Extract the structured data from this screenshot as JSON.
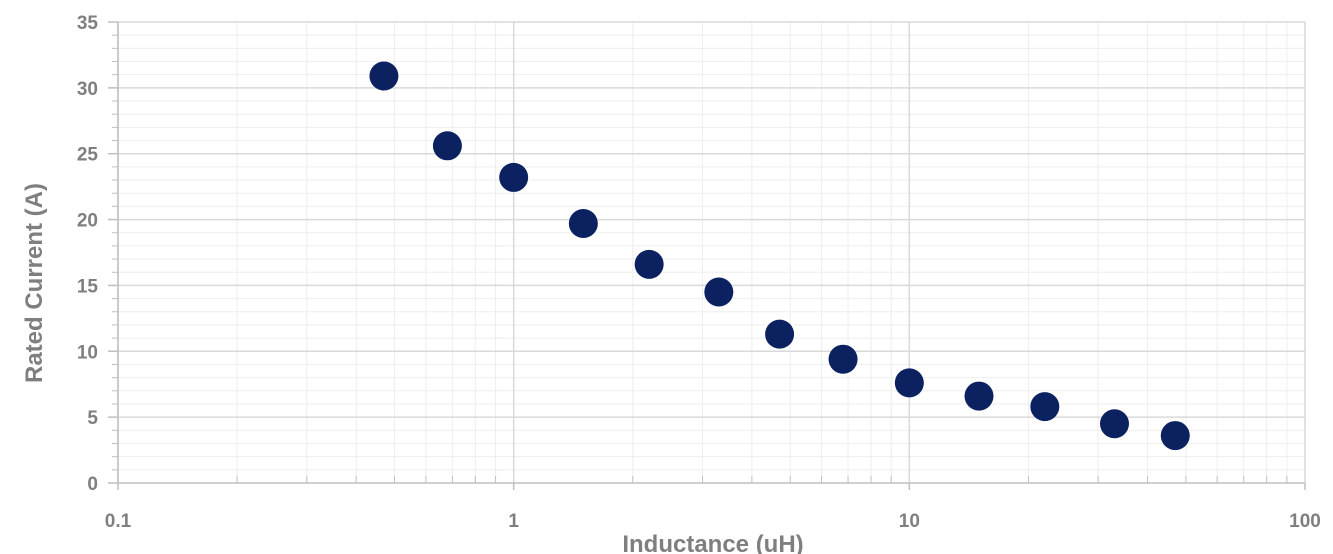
{
  "chart_data": {
    "type": "scatter",
    "title": "",
    "xlabel": "Inductance (uH)",
    "ylabel": "Rated Current (A)",
    "x_scale": "log",
    "xlim": [
      0.1,
      100
    ],
    "ylim": [
      0,
      35
    ],
    "x_ticks": [
      "0.1",
      "1",
      "10",
      "100"
    ],
    "y_ticks": [
      "0",
      "5",
      "10",
      "15",
      "20",
      "25",
      "30",
      "35"
    ],
    "grid": true,
    "legend": "none",
    "marker_color": "#0b2160",
    "series": [
      {
        "x": [
          0.47,
          0.68,
          1.0,
          1.5,
          2.2,
          3.3,
          4.7,
          6.8,
          10,
          15,
          22,
          33,
          47
        ],
        "y": [
          30.9,
          25.6,
          23.2,
          19.7,
          16.6,
          14.5,
          11.3,
          9.4,
          7.6,
          6.6,
          5.8,
          4.5,
          3.6
        ]
      }
    ]
  }
}
